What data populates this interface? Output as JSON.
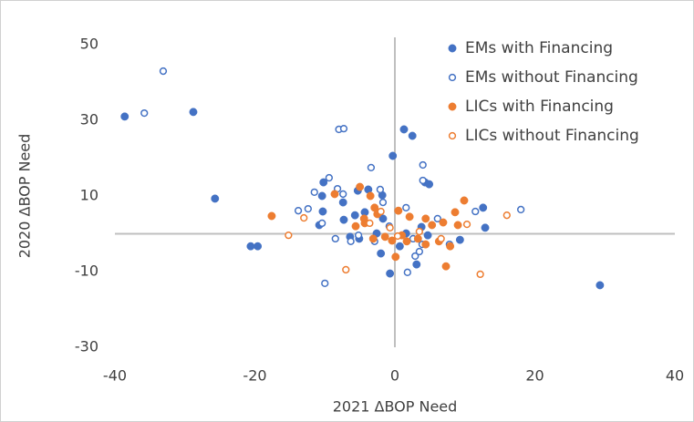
{
  "chart_data": {
    "type": "scatter",
    "xlabel": "2021 ΔBOP Need",
    "ylabel": "2020 ΔBOP Need",
    "xlim": [
      -40,
      40
    ],
    "xticks": [
      -40,
      -20,
      0,
      20,
      40
    ],
    "ylim": [
      -30,
      50
    ],
    "yticks": [
      -30,
      -10,
      10,
      30,
      50
    ],
    "legend": "upper right",
    "series": [
      {
        "name": "EMs with Financing",
        "color": "#4472c4",
        "filled": true,
        "x": [
          -38.6,
          -28.8,
          -25.7,
          1.3,
          2.5,
          -0.3,
          -10.2,
          -10.4,
          -7.4,
          -5.3,
          -3.8,
          -1.8,
          4.3,
          4.9,
          12.6,
          12.9,
          9.3,
          29.3,
          -20.6,
          -19.6,
          -0.7,
          3.1,
          -7.3,
          -5.7,
          -10.8,
          -4.3,
          -1.7,
          1.6,
          -2,
          -10.3,
          -6.4,
          -5.1,
          -2.6,
          0.7,
          4.7,
          3.8
        ],
        "values": [
          31,
          32.2,
          9.3,
          27.6,
          25.9,
          20.6,
          13.6,
          10,
          8.3,
          11.4,
          11.7,
          10.2,
          13.6,
          13.1,
          6.9,
          1.6,
          -1.6,
          -13.6,
          -3.3,
          -3.3,
          -10.5,
          -8.1,
          3.7,
          4.9,
          2.3,
          5.7,
          4,
          0.1,
          -5.2,
          5.9,
          -0.8,
          -1.3,
          0.1,
          -3.3,
          -0.4,
          1.8
        ]
      },
      {
        "name": "EMs without Financing",
        "color": "#4472c4",
        "filled": false,
        "x": [
          -35.8,
          -33.1,
          -8,
          -7.3,
          -3.4,
          4,
          4,
          -9.4,
          -11.5,
          -8.2,
          -7.4,
          -13.8,
          -12.4,
          -10.4,
          -8.5,
          -6.3,
          -5.2,
          -2.9,
          -1.7,
          -2.1,
          1.6,
          2.6,
          3.9,
          2.9,
          3.5,
          11.5,
          18,
          -10,
          1.8,
          6.1,
          -0.8,
          7.8
        ],
        "values": [
          31.9,
          43,
          27.6,
          27.8,
          17.5,
          18.2,
          14.1,
          14.8,
          11,
          11.9,
          10.5,
          6.1,
          6.6,
          2.8,
          -1.3,
          -2,
          -0.4,
          -2,
          8.3,
          11.7,
          6.9,
          -1.3,
          -2.8,
          -5.9,
          -4.7,
          5.9,
          6.4,
          -13.1,
          -10.2,
          4,
          2,
          -2.8
        ]
      },
      {
        "name": "LICs with Financing",
        "color": "#ed7d31",
        "filled": true,
        "x": [
          -17.6,
          -8.6,
          -5,
          -3.5,
          -2.9,
          -2.5,
          -4.3,
          -3.1,
          0.5,
          2.1,
          4.4,
          5.3,
          6.9,
          8.6,
          9.9,
          9,
          7.3,
          0.1,
          -1.4,
          -0.4,
          1,
          1.7,
          3.3,
          4.4,
          6.3,
          7.9,
          -5.6,
          -4.4
        ],
        "values": [
          4.7,
          10.5,
          12.4,
          10,
          6.9,
          5.2,
          2.8,
          -1.3,
          6.1,
          4.5,
          4,
          2.3,
          3,
          5.7,
          8.8,
          2.3,
          -8.6,
          -6.1,
          -0.8,
          -1.8,
          -0.4,
          -2,
          -1.3,
          -2.8,
          -2,
          -3.3,
          2,
          4
        ]
      },
      {
        "name": "LICs without Financing",
        "color": "#ed7d31",
        "filled": false,
        "x": [
          -15.2,
          -13,
          -7,
          12.2,
          16,
          10.3,
          -2,
          -0.7,
          0.4,
          3.5,
          6.6,
          -3.6
        ],
        "values": [
          -0.4,
          4.2,
          -9.5,
          -10.7,
          4.9,
          2.5,
          5.9,
          1.6,
          -0.6,
          0.6,
          -1.3,
          2.8
        ]
      }
    ]
  }
}
